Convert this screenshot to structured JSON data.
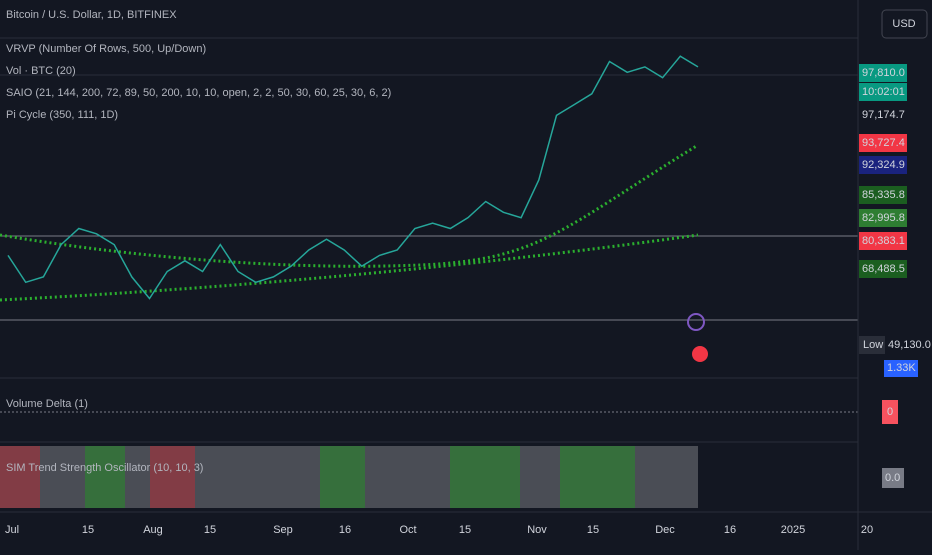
{
  "header": {
    "symbol": "Bitcoin / U.S. Dollar, 1D, BITFINEX",
    "currency": "USD"
  },
  "indicators": [
    "VRVP (Number Of Rows, 500, Up/Down)",
    "Vol · BTC (20)",
    "SAIO (21, 144, 200, 72, 89, 50, 200, 10, 10, open, 2, 2, 50, 30, 60, 25, 30, 6, 2)",
    "Pi Cycle (350, 111, 1D)"
  ],
  "panes": {
    "volume_delta": "Volume Delta (1)",
    "oscillator": "SIM Trend Strength Oscillator (10, 10, 3)"
  },
  "price_labels": [
    {
      "text": "97,810.0",
      "color": "#089981"
    },
    {
      "text": "10:02:01",
      "color": "#089981"
    },
    {
      "text": "97,174.7",
      "color": "#131722"
    },
    {
      "text": "93,727.4",
      "color": "#f23645"
    },
    {
      "text": "92,324.9",
      "color": "#1a237e"
    },
    {
      "text": "85,335.8",
      "color": "#1b5e20"
    },
    {
      "text": "82,995.8",
      "color": "#2e7d32"
    },
    {
      "text": "80,383.1",
      "color": "#f23645"
    },
    {
      "text": "68,488.5",
      "color": "#1b5e20"
    }
  ],
  "low_label": {
    "tag": "Low",
    "text": "49,130.0"
  },
  "volume_label": "1.33K",
  "delta_label": "0",
  "osc_label": "0.0",
  "x_axis": [
    "Jul",
    "15",
    "Aug",
    "15",
    "Sep",
    "16",
    "Oct",
    "15",
    "Nov",
    "15",
    "Dec",
    "16",
    "2025",
    "20"
  ],
  "price": {
    "ylim": [
      50000,
      102000
    ],
    "closes": [
      62000,
      57000,
      58000,
      64000,
      67000,
      66000,
      64000,
      58000,
      54000,
      59000,
      61000,
      59000,
      64000,
      59000,
      57000,
      58000,
      60000,
      63000,
      65000,
      63000,
      60000,
      62000,
      63000,
      67000,
      68000,
      67000,
      69000,
      72000,
      70000,
      69000,
      76000,
      88000,
      90000,
      92000,
      98000,
      96000,
      97000,
      95000,
      99000,
      97000
    ]
  }
}
